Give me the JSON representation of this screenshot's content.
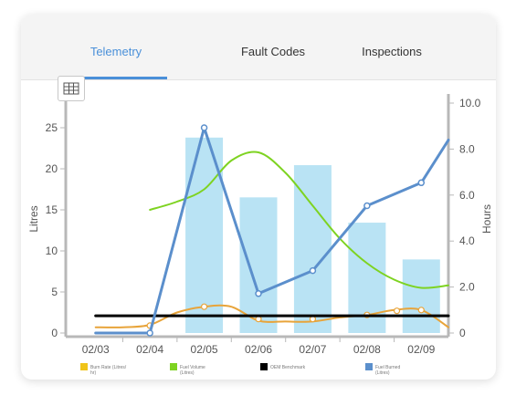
{
  "tabs": [
    {
      "label": "Telemetry",
      "active": true
    },
    {
      "label": "Fault Codes",
      "active": false
    },
    {
      "label": "Inspections",
      "active": false
    }
  ],
  "icons": {
    "table_toggle": "table-icon"
  },
  "colors": {
    "accent": "#4a90d9",
    "bars": "#b9e3f4",
    "burn_rate": "#e8a43a",
    "fuel_volume": "#7ed321",
    "oem_benchmark": "#000000",
    "fuel_burned": "#5b8fcc",
    "legend_burn_rate": "#f0c419"
  },
  "chart_data": {
    "type": "bar",
    "x_labels": [
      "02/03",
      "02/04",
      "02/05",
      "02/06",
      "02/07",
      "02/08",
      "02/09"
    ],
    "left_axis": {
      "label": "Litres",
      "ticks": [
        "0",
        "5",
        "10",
        "15",
        "20",
        "25"
      ],
      "range": [
        0,
        28
      ]
    },
    "right_axis": {
      "label": "Hours",
      "ticks": [
        "0",
        "2.0",
        "4.0",
        "6.0",
        "8.0",
        "10.0"
      ],
      "range": [
        0,
        10
      ]
    },
    "bars": {
      "axis": "right",
      "categories": [
        "02/05",
        "02/06",
        "02/07",
        "02/08",
        "02/09"
      ],
      "values": [
        8.5,
        5.9,
        7.3,
        4.8,
        3.2
      ]
    },
    "series": [
      {
        "name": "Burn Rate (Litres/ hr)",
        "kind": "smooth-line",
        "axis": "left",
        "x": [
          0,
          0.5,
          1,
          1.5,
          2,
          2.5,
          3,
          3.5,
          4,
          4.5,
          5,
          5.5,
          6,
          6.5
        ],
        "values": [
          0.7,
          0.7,
          1.0,
          2.5,
          3.2,
          3.2,
          1.5,
          1.4,
          1.4,
          1.9,
          2.2,
          2.8,
          2.8,
          0.7
        ],
        "markers": [
          {
            "x": 1.0,
            "y": 0.9
          },
          {
            "x": 2.0,
            "y": 3.2
          },
          {
            "x": 3.0,
            "y": 1.7
          },
          {
            "x": 4.0,
            "y": 1.7
          },
          {
            "x": 5.0,
            "y": 2.2
          },
          {
            "x": 5.55,
            "y": 2.7
          },
          {
            "x": 6.0,
            "y": 2.8
          }
        ]
      },
      {
        "name": "Fuel Volume (Litres)",
        "kind": "smooth-line",
        "axis": "left",
        "x": [
          1.0,
          1.5,
          2.0,
          2.5,
          3.0,
          3.5,
          4.0,
          4.5,
          5.0,
          5.5,
          6.0,
          6.5
        ],
        "values": [
          15.0,
          16.0,
          17.5,
          21.0,
          22.0,
          19.5,
          15.5,
          11.5,
          8.5,
          6.5,
          5.5,
          5.8
        ]
      },
      {
        "name": "OEM Benchmark",
        "kind": "flat-line",
        "axis": "left",
        "x": [
          0.0,
          6.5
        ],
        "values": [
          2.1,
          2.1
        ]
      },
      {
        "name": "Fuel Burned (Litres)",
        "kind": "line",
        "axis": "left",
        "x": [
          0.0,
          1.0,
          2.0,
          3.0,
          4.0,
          5.0,
          6.0,
          6.5
        ],
        "values": [
          0.0,
          0.0,
          25.0,
          4.8,
          7.6,
          15.5,
          18.3,
          23.5
        ],
        "markers_at": [
          1,
          2,
          3,
          4,
          5,
          6
        ]
      }
    ],
    "legend_position": "bottom",
    "grid": false
  }
}
